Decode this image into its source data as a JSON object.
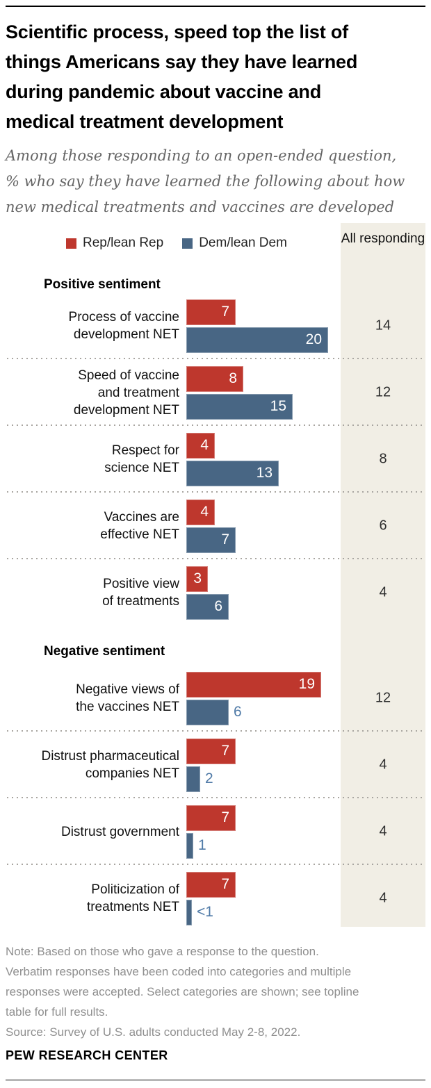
{
  "title": "Scientific process, speed top the list of\nthings Americans say they have learned\nduring pandemic about vaccine and\nmedical treatment development",
  "subtitle": "Among those responding to an open-ended question,\n% who say they have learned the following about how\nnew medical treatments and vaccines are developed",
  "legend": {
    "rep": {
      "label": "Rep/lean Rep",
      "color": "#be372d"
    },
    "dem": {
      "label": "Dem/lean Dem",
      "color": "#486684"
    }
  },
  "all_column_header": "All responding",
  "colors": {
    "rep_bar": "#be372d",
    "dem_bar": "#486684",
    "outside_value_label": "#4f7aa7",
    "column_bg": "#f1eee5"
  },
  "chart_data": {
    "type": "bar",
    "orientation": "horizontal",
    "unit": "%",
    "value_axis_max": 20,
    "series_names": [
      "Rep/lean Rep",
      "Dem/lean Dem",
      "All responding"
    ],
    "groups": [
      {
        "header": "Positive sentiment",
        "rows": [
          {
            "label": "Process of vaccine\ndevelopment NET",
            "rep": 7,
            "rep_display": "7",
            "dem": 20,
            "dem_display": "20",
            "dem_label_outside": false,
            "all": "14"
          },
          {
            "label": "Speed of vaccine\nand treatment\ndevelopment NET",
            "rep": 8,
            "rep_display": "8",
            "dem": 15,
            "dem_display": "15",
            "dem_label_outside": false,
            "all": "12"
          },
          {
            "label": "Respect for\nscience NET",
            "rep": 4,
            "rep_display": "4",
            "dem": 13,
            "dem_display": "13",
            "dem_label_outside": false,
            "all": "8"
          },
          {
            "label": "Vaccines are\neffective NET",
            "rep": 4,
            "rep_display": "4",
            "dem": 7,
            "dem_display": "7",
            "dem_label_outside": false,
            "all": "6"
          },
          {
            "label": "Positive view\nof treatments",
            "rep": 3,
            "rep_display": "3",
            "dem": 6,
            "dem_display": "6",
            "dem_label_outside": false,
            "all": "4"
          }
        ]
      },
      {
        "header": "Negative sentiment",
        "rows": [
          {
            "label": "Negative views of\nthe vaccines NET",
            "rep": 19,
            "rep_display": "19",
            "dem": 6,
            "dem_display": "6",
            "dem_label_outside": true,
            "all": "12"
          },
          {
            "label": "Distrust pharmaceutical\ncompanies NET",
            "rep": 7,
            "rep_display": "7",
            "dem": 2,
            "dem_display": "2",
            "dem_label_outside": true,
            "all": "4"
          },
          {
            "label": "Distrust government",
            "rep": 7,
            "rep_display": "7",
            "dem": 1,
            "dem_display": "1",
            "dem_label_outside": true,
            "all": "4"
          },
          {
            "label": "Politicization of\ntreatments NET",
            "rep": 7,
            "rep_display": "7",
            "dem": 0.5,
            "dem_display": "<1",
            "dem_label_outside": true,
            "all": "4"
          }
        ]
      }
    ]
  },
  "footer": {
    "note": "Note: Based on those who gave a response to the question.\nVerbatim responses have been coded into categories and multiple\nresponses were accepted. Select categories are shown; see topline\ntable for full results.",
    "source": "Source: Survey of U.S. adults conducted May 2-8, 2022.",
    "brand": "PEW RESEARCH CENTER"
  }
}
